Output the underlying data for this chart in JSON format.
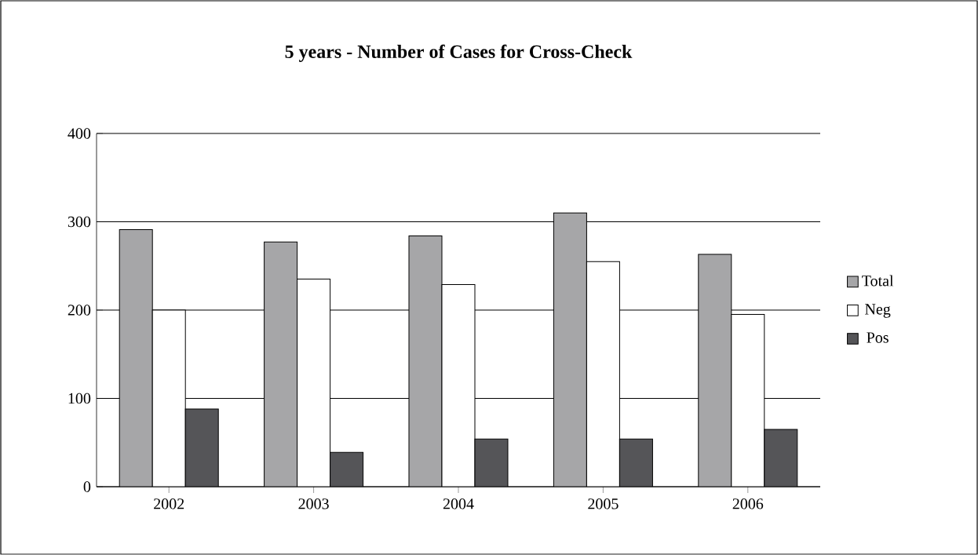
{
  "chart_data": {
    "type": "bar",
    "title": "5 years - Number of Cases for Cross-Check",
    "categories": [
      "2002",
      "2003",
      "2004",
      "2005",
      "2006"
    ],
    "series": [
      {
        "name": "Total",
        "color": "#a6a6a8",
        "values": [
          291,
          277,
          284,
          310,
          263
        ]
      },
      {
        "name": "Neg",
        "color": "#ffffff",
        "values": [
          200,
          235,
          229,
          255,
          195
        ]
      },
      {
        "name": "Pos",
        "color": "#555558",
        "values": [
          88,
          39,
          54,
          54,
          65
        ]
      }
    ],
    "ylim": [
      0,
      400
    ],
    "yticks": [
      0,
      100,
      200,
      300,
      400
    ],
    "grid": "y",
    "legend": "right"
  }
}
